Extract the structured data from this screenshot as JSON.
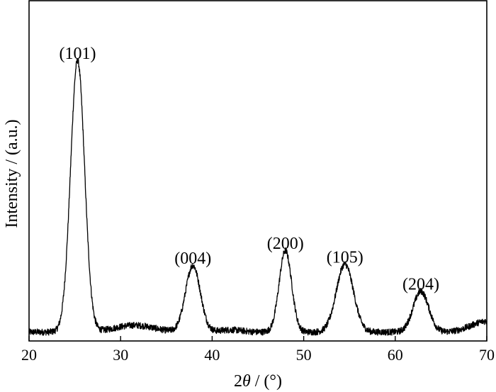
{
  "chart_data": {
    "type": "line",
    "title": "",
    "xlabel_prefix": "2",
    "xlabel_symbol": "θ",
    "xlabel_suffix": " / (°)",
    "ylabel": "Intensity / (a.u.)",
    "xlim": [
      20,
      70
    ],
    "ylim": [
      0,
      100
    ],
    "x_ticks": [
      20,
      30,
      40,
      50,
      60,
      70
    ],
    "y_ticks_shown": false,
    "grid": false,
    "legend": "none",
    "line_color": "#000000",
    "baseline": 2.5,
    "series": [
      {
        "peaks": [
          {
            "center": 25.3,
            "height": 100,
            "fwhm": 1.8
          },
          {
            "center": 37.9,
            "height": 24.5,
            "fwhm": 1.9
          },
          {
            "center": 48.0,
            "height": 30.0,
            "fwhm": 1.6
          },
          {
            "center": 54.5,
            "height": 25.0,
            "fwhm": 2.2
          },
          {
            "center": 62.8,
            "height": 15.0,
            "fwhm": 2.0
          }
        ],
        "humps": [
          {
            "center": 31.5,
            "height": 2.5,
            "fwhm": 5.0
          },
          {
            "center": 42.0,
            "height": 0.8,
            "fwhm": 3.0
          },
          {
            "center": 70.0,
            "height": 4.0,
            "fwhm": 4.0
          }
        ],
        "noise_amplitude": 1.2
      }
    ],
    "annotations": [
      {
        "text": "(101)",
        "x": 25.3,
        "y": 100
      },
      {
        "text": "(004)",
        "x": 37.9,
        "y": 24.5
      },
      {
        "text": "(200)",
        "x": 48.0,
        "y": 30.0
      },
      {
        "text": "(105)",
        "x": 54.5,
        "y": 25.0
      },
      {
        "text": "(204)",
        "x": 62.8,
        "y": 15.0
      }
    ]
  }
}
